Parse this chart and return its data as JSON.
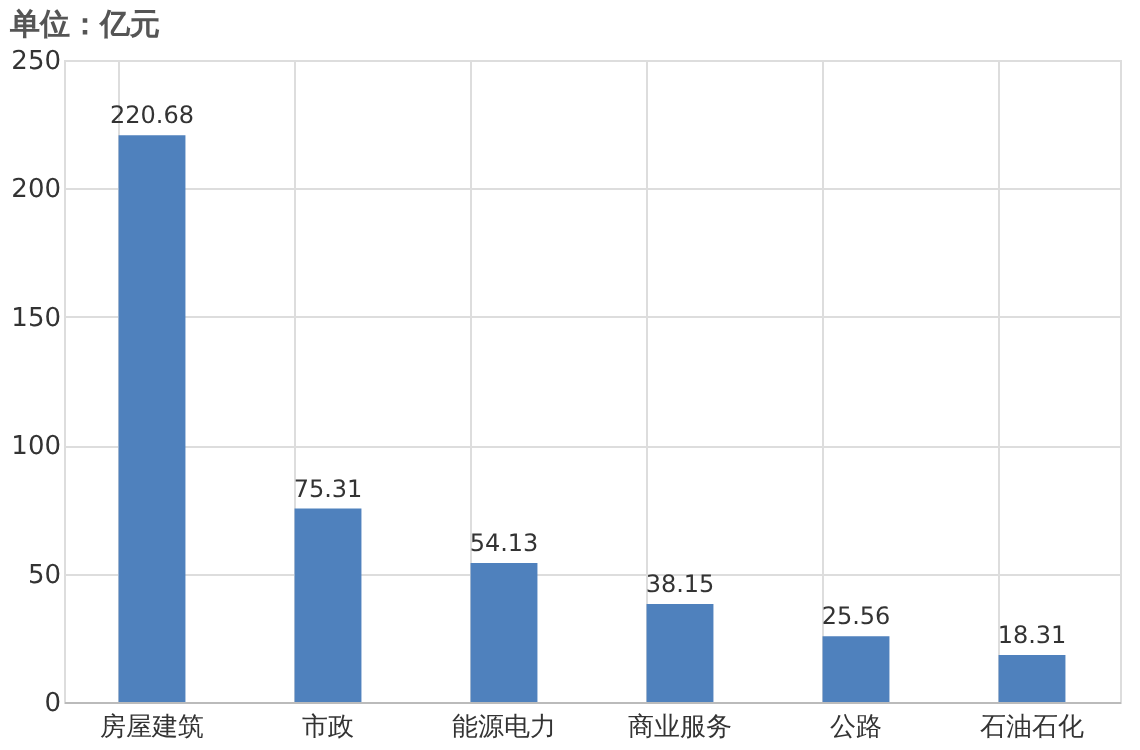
{
  "chart_data": {
    "type": "bar",
    "title": "单位：亿元",
    "categories": [
      "房屋建筑",
      "市政",
      "能源电力",
      "商业服务",
      "公路",
      "石油石化"
    ],
    "values": [
      220.68,
      75.31,
      54.13,
      38.15,
      25.56,
      18.31
    ],
    "color": "#4f81bd",
    "ylim": [
      0,
      250
    ],
    "yticks": [
      0,
      50,
      100,
      150,
      200,
      250
    ],
    "grid": true,
    "data_labels": true
  }
}
